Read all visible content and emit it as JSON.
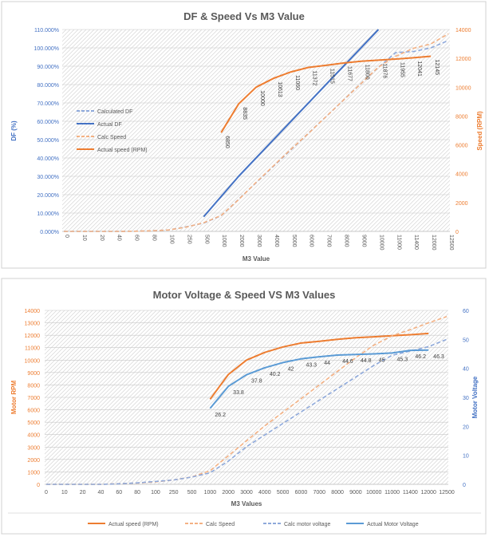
{
  "chart_data": [
    {
      "type": "line",
      "title": "DF & Speed Vs M3 Value",
      "xlabel": "M3 Value",
      "ylabel": "DF (%)",
      "y2label": "Speed (RPM)",
      "ylim": [
        0,
        110
      ],
      "y2lim": [
        0,
        14000
      ],
      "grid": true,
      "legend": "left",
      "categories": [
        "0",
        "10",
        "20",
        "40",
        "60",
        "80",
        "100",
        "250",
        "500",
        "1000",
        "2000",
        "3000",
        "4000",
        "5000",
        "6000",
        "7000",
        "8000",
        "9000",
        "10000",
        "11000",
        "11400",
        "12000",
        "12500"
      ],
      "yticks": [
        "0.000%",
        "10.000%",
        "20.000%",
        "30.000%",
        "40.000%",
        "50.000%",
        "60.000%",
        "70.000%",
        "80.000%",
        "90.000%",
        "100.000%",
        "110.000%"
      ],
      "y2ticks": [
        "0",
        "2000",
        "4000",
        "6000",
        "8000",
        "10000",
        "12000",
        "14000"
      ],
      "series": [
        {
          "name": "Calculated DF",
          "axis": "left",
          "color": "#8EA9DB",
          "dash": true,
          "values": [
            0,
            0,
            0,
            0,
            0.1,
            0.3,
            0.8,
            2.5,
            4.5,
            8.5,
            17.5,
            26.5,
            35.5,
            44.5,
            53.5,
            62.5,
            71.5,
            80.5,
            89.5,
            97.5,
            98,
            100,
            104
          ]
        },
        {
          "name": "Actual DF",
          "axis": "left",
          "color": "#4472C4",
          "dash": false,
          "values": [
            null,
            null,
            null,
            null,
            null,
            null,
            null,
            null,
            8,
            19,
            30,
            40,
            50,
            60,
            70,
            80,
            90,
            100,
            110,
            null,
            null,
            null,
            null
          ]
        },
        {
          "name": "Calc Speed",
          "axis": "right",
          "color": "#F4B183",
          "dash": true,
          "values": [
            0,
            0,
            0,
            0,
            10,
            40,
            100,
            300,
            600,
            1100,
            2200,
            3400,
            4550,
            5700,
            6800,
            7950,
            9100,
            10250,
            11400,
            12150,
            12700,
            13000,
            13700
          ]
        },
        {
          "name": "Actual speed (RPM)",
          "axis": "right",
          "color": "#ED7D31",
          "dash": false,
          "values": [
            null,
            null,
            null,
            null,
            null,
            null,
            null,
            null,
            null,
            6850,
            8835,
            10000,
            10613,
            11060,
            11372,
            11515,
            11677,
            11800,
            11876,
            11955,
            12041,
            12145,
            null
          ]
        }
      ],
      "data_labels": [
        "6850",
        "8835",
        "10000",
        "10613",
        "11060",
        "11372",
        "11515",
        "11677",
        "11800",
        "11876",
        "11955",
        "12041",
        "12145"
      ]
    },
    {
      "type": "line",
      "title": "Motor Voltage & Speed VS M3 Values",
      "xlabel": "M3 Values",
      "ylabel": "Motor RPM",
      "y2label": "Motor Voltage",
      "ylim": [
        0,
        14000
      ],
      "y2lim": [
        0,
        60
      ],
      "grid": true,
      "legend": "bottom",
      "categories": [
        "0",
        "10",
        "20",
        "40",
        "60",
        "80",
        "100",
        "250",
        "500",
        "1000",
        "2000",
        "3000",
        "4000",
        "5000",
        "6000",
        "7000",
        "8000",
        "9000",
        "10000",
        "11000",
        "11400",
        "12000",
        "12500"
      ],
      "yticks": [
        "0",
        "1000",
        "2000",
        "3000",
        "4000",
        "5000",
        "6000",
        "7000",
        "8000",
        "9000",
        "10000",
        "11000",
        "12000",
        "13000",
        "14000"
      ],
      "y2ticks": [
        "0",
        "10",
        "20",
        "30",
        "40",
        "50",
        "60"
      ],
      "series": [
        {
          "name": "Actual speed (RPM)",
          "axis": "left",
          "color": "#ED7D31",
          "dash": false,
          "values": [
            null,
            null,
            null,
            null,
            null,
            null,
            null,
            null,
            null,
            6850,
            8835,
            10000,
            10613,
            11060,
            11372,
            11515,
            11677,
            11800,
            11876,
            11955,
            12041,
            12145,
            null
          ]
        },
        {
          "name": "Calc Speed",
          "axis": "left",
          "color": "#F4B183",
          "dash": true,
          "values": [
            0,
            0,
            0,
            0,
            50,
            100,
            200,
            350,
            600,
            1100,
            2300,
            3500,
            4700,
            5800,
            6900,
            8000,
            9100,
            10200,
            11200,
            11950,
            12450,
            13000,
            13500
          ]
        },
        {
          "name": "Calc motor voltage",
          "axis": "right",
          "color": "#8EA9DB",
          "dash": true,
          "values": [
            0,
            0,
            0,
            0,
            0.2,
            0.5,
            1,
            1.5,
            2.5,
            4,
            8,
            13,
            17,
            21,
            25,
            29,
            33,
            37,
            41,
            44.5,
            46,
            47.5,
            50
          ]
        },
        {
          "name": "Actual Motor Voltage",
          "axis": "right",
          "color": "#5B9BD5",
          "dash": false,
          "values": [
            null,
            null,
            null,
            null,
            null,
            null,
            null,
            null,
            null,
            26.2,
            33.8,
            37.8,
            40.2,
            42,
            43.3,
            44,
            44.6,
            44.8,
            45,
            45.3,
            46.2,
            46.3,
            null
          ]
        }
      ],
      "data_labels": [
        "26.2",
        "33.8",
        "37.8",
        "40.2",
        "42",
        "43.3",
        "44",
        "44.6",
        "44.8",
        "45",
        "45.3",
        "46.2",
        "46.3"
      ]
    }
  ]
}
